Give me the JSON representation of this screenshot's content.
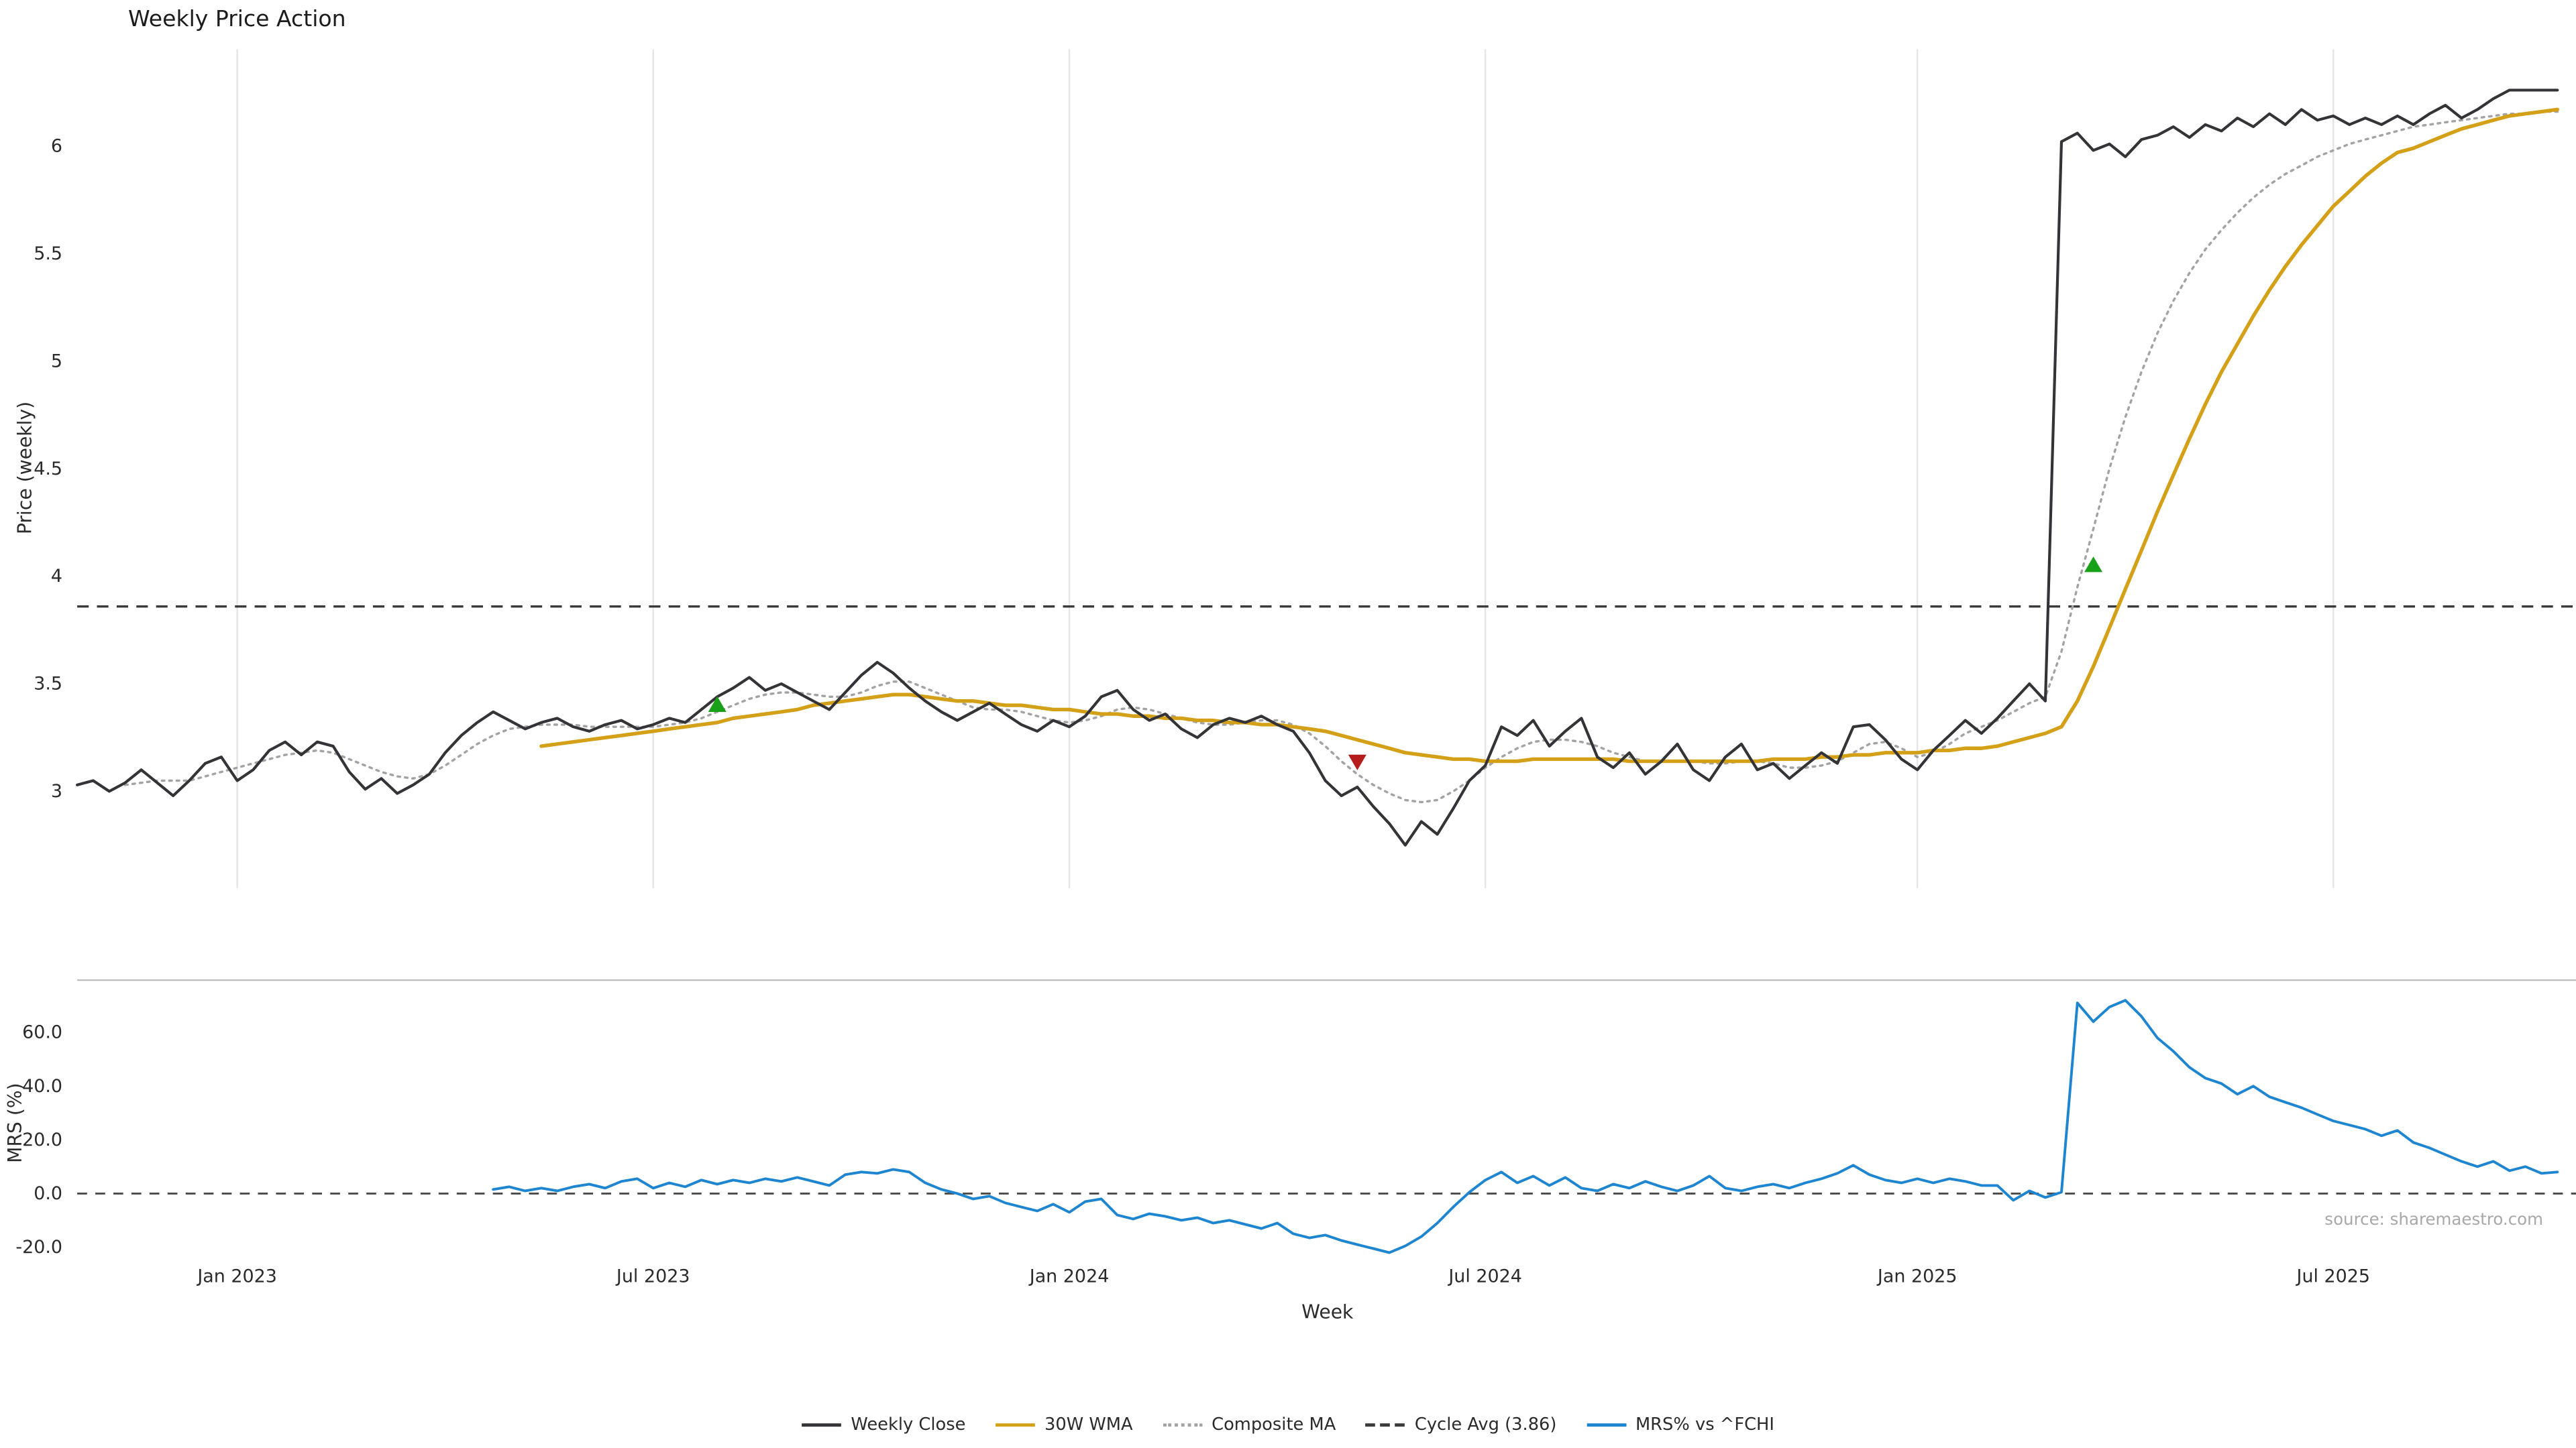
{
  "title": "Weekly Price Action",
  "source_note": "source: sharemaestro.com",
  "axes": {
    "price_ylabel": "Price (weekly)",
    "mrs_ylabel": "MRS (%)",
    "xlabel": "Week"
  },
  "legend": {
    "items": [
      {
        "label": "Weekly Close",
        "style": "solid",
        "color": "#343438"
      },
      {
        "label": "30W WMA",
        "style": "solid",
        "color": "#d4a017"
      },
      {
        "label": "Composite MA",
        "style": "dotted",
        "color": "#a3a3a3"
      },
      {
        "label": "Cycle Avg (3.86)",
        "style": "dashed",
        "color": "#3a3a3a"
      },
      {
        "label": "MRS% vs ^FCHI",
        "style": "solid",
        "color": "#1e85d0"
      }
    ]
  },
  "chart_data": {
    "type": "line",
    "title": "Weekly Price Action",
    "xlabel": "Week",
    "x_unit": "week_index",
    "n_weeks": 156,
    "grid_color": "#e5e5e5",
    "xticks": {
      "indices": [
        10,
        36,
        62,
        88,
        115,
        141
      ],
      "labels": [
        "Jan 2023",
        "Jul 2023",
        "Jan 2024",
        "Jul 2024",
        "Jan 2025",
        "Jul 2025"
      ]
    },
    "panels": [
      {
        "name": "price",
        "ylabel": "Price (weekly)",
        "ylim": [
          2.55,
          6.45
        ],
        "yticks": [
          3,
          3.5,
          4,
          4.5,
          5,
          5.5,
          6
        ],
        "ytick_labels": [
          "3",
          "3.5",
          "4",
          "4.5",
          "5",
          "5.5",
          "6"
        ],
        "cycle_avg": 3.86,
        "series": [
          {
            "name": "Weekly Close",
            "color": "#343438",
            "style": "solid",
            "width": 1.7,
            "start_index": 0,
            "values": [
              3.03,
              3.05,
              3.0,
              3.04,
              3.1,
              3.04,
              2.98,
              3.05,
              3.13,
              3.16,
              3.05,
              3.1,
              3.19,
              3.23,
              3.17,
              3.23,
              3.21,
              3.09,
              3.01,
              3.06,
              2.99,
              3.03,
              3.08,
              3.18,
              3.26,
              3.32,
              3.37,
              3.33,
              3.29,
              3.32,
              3.34,
              3.3,
              3.28,
              3.31,
              3.33,
              3.29,
              3.31,
              3.34,
              3.32,
              3.38,
              3.44,
              3.48,
              3.53,
              3.47,
              3.5,
              3.46,
              3.42,
              3.38,
              3.46,
              3.54,
              3.6,
              3.55,
              3.48,
              3.42,
              3.37,
              3.33,
              3.37,
              3.41,
              3.36,
              3.31,
              3.28,
              3.33,
              3.3,
              3.35,
              3.44,
              3.47,
              3.38,
              3.33,
              3.36,
              3.29,
              3.25,
              3.31,
              3.34,
              3.32,
              3.35,
              3.31,
              3.28,
              3.18,
              3.05,
              2.98,
              3.02,
              2.93,
              2.85,
              2.75,
              2.86,
              2.8,
              2.92,
              3.05,
              3.12,
              3.3,
              3.26,
              3.33,
              3.21,
              3.28,
              3.34,
              3.16,
              3.11,
              3.18,
              3.08,
              3.14,
              3.22,
              3.1,
              3.05,
              3.16,
              3.22,
              3.1,
              3.13,
              3.06,
              3.12,
              3.18,
              3.13,
              3.3,
              3.31,
              3.24,
              3.15,
              3.1,
              3.19,
              3.26,
              3.33,
              3.27,
              3.34,
              3.42,
              3.5,
              3.42,
              6.02,
              6.06,
              5.98,
              6.01,
              5.95,
              6.03,
              6.05,
              6.09,
              6.04,
              6.1,
              6.07,
              6.13,
              6.09,
              6.15,
              6.1,
              6.17,
              6.12,
              6.14,
              6.1,
              6.13,
              6.1,
              6.14,
              6.1,
              6.15,
              6.19,
              6.13,
              6.17,
              6.22,
              6.26,
              6.26,
              6.26,
              6.26
            ]
          },
          {
            "name": "30W WMA",
            "color": "#d4a017",
            "style": "solid",
            "width": 2.2,
            "start_index": 29,
            "values": [
              3.21,
              3.22,
              3.23,
              3.24,
              3.25,
              3.26,
              3.27,
              3.28,
              3.29,
              3.3,
              3.31,
              3.32,
              3.34,
              3.35,
              3.36,
              3.37,
              3.38,
              3.4,
              3.41,
              3.42,
              3.43,
              3.44,
              3.45,
              3.45,
              3.44,
              3.43,
              3.42,
              3.42,
              3.41,
              3.4,
              3.4,
              3.39,
              3.38,
              3.38,
              3.37,
              3.36,
              3.36,
              3.35,
              3.35,
              3.34,
              3.34,
              3.33,
              3.33,
              3.32,
              3.32,
              3.31,
              3.31,
              3.3,
              3.29,
              3.28,
              3.26,
              3.24,
              3.22,
              3.2,
              3.18,
              3.17,
              3.16,
              3.15,
              3.15,
              3.14,
              3.14,
              3.14,
              3.15,
              3.15,
              3.15,
              3.15,
              3.15,
              3.15,
              3.14,
              3.14,
              3.14,
              3.14,
              3.14,
              3.14,
              3.14,
              3.14,
              3.14,
              3.15,
              3.15,
              3.15,
              3.16,
              3.16,
              3.17,
              3.17,
              3.18,
              3.18,
              3.18,
              3.19,
              3.19,
              3.2,
              3.2,
              3.21,
              3.23,
              3.25,
              3.27,
              3.3,
              3.42,
              3.58,
              3.76,
              3.94,
              4.12,
              4.3,
              4.47,
              4.64,
              4.8,
              4.95,
              5.08,
              5.21,
              5.33,
              5.44,
              5.54,
              5.63,
              5.72,
              5.79,
              5.86,
              5.92,
              5.97,
              5.99,
              6.02,
              6.05,
              6.08,
              6.1,
              6.12,
              6.14,
              6.15,
              6.16,
              6.17
            ]
          },
          {
            "name": "Composite MA",
            "color": "#a3a3a3",
            "style": "dotted",
            "width": 1.4,
            "start_index": 3,
            "values": [
              3.03,
              3.04,
              3.05,
              3.05,
              3.05,
              3.07,
              3.09,
              3.11,
              3.13,
              3.15,
              3.17,
              3.18,
              3.19,
              3.18,
              3.15,
              3.12,
              3.09,
              3.07,
              3.06,
              3.08,
              3.12,
              3.17,
              3.22,
              3.26,
              3.29,
              3.3,
              3.31,
              3.31,
              3.31,
              3.3,
              3.3,
              3.3,
              3.3,
              3.3,
              3.31,
              3.32,
              3.34,
              3.37,
              3.4,
              3.43,
              3.45,
              3.46,
              3.46,
              3.45,
              3.44,
              3.44,
              3.46,
              3.49,
              3.51,
              3.51,
              3.48,
              3.45,
              3.42,
              3.39,
              3.38,
              3.38,
              3.37,
              3.35,
              3.33,
              3.32,
              3.33,
              3.35,
              3.38,
              3.39,
              3.38,
              3.36,
              3.34,
              3.32,
              3.31,
              3.31,
              3.32,
              3.33,
              3.33,
              3.31,
              3.27,
              3.21,
              3.14,
              3.08,
              3.03,
              2.99,
              2.96,
              2.95,
              2.96,
              3.0,
              3.05,
              3.11,
              3.16,
              3.2,
              3.23,
              3.24,
              3.24,
              3.23,
              3.21,
              3.18,
              3.16,
              3.14,
              3.14,
              3.14,
              3.14,
              3.13,
              3.13,
              3.14,
              3.14,
              3.13,
              3.11,
              3.11,
              3.12,
              3.14,
              3.18,
              3.22,
              3.23,
              3.2,
              3.16,
              3.18,
              3.22,
              3.27,
              3.3,
              3.33,
              3.37,
              3.41,
              3.44,
              3.65,
              3.95,
              4.22,
              4.5,
              4.74,
              4.95,
              5.13,
              5.28,
              5.41,
              5.52,
              5.61,
              5.69,
              5.76,
              5.82,
              5.87,
              5.91,
              5.95,
              5.98,
              6.01,
              6.03,
              6.05,
              6.07,
              6.09,
              6.1,
              6.11,
              6.12,
              6.13,
              6.14,
              6.15,
              6.15,
              6.16,
              6.16
            ]
          }
        ],
        "markers": [
          {
            "shape": "triangle-up",
            "color": "#18a118",
            "week_index": 40,
            "value": 3.4
          },
          {
            "shape": "triangle-down",
            "color": "#b51d1d",
            "week_index": 80,
            "value": 3.14
          },
          {
            "shape": "triangle-up",
            "color": "#18a118",
            "week_index": 126,
            "value": 4.05
          }
        ]
      },
      {
        "name": "mrs",
        "ylabel": "MRS (%)",
        "ylim": [
          -26.3,
          79.5
        ],
        "yticks": [
          -20,
          0,
          20,
          40,
          60
        ],
        "ytick_labels": [
          "-20.0",
          "0.0",
          "20.0",
          "40.0",
          "60.0"
        ],
        "zero_line": 0,
        "series": [
          {
            "name": "MRS% vs ^FCHI",
            "color": "#1e85d0",
            "style": "solid",
            "width": 1.6,
            "start_index": 26,
            "values": [
              1.5,
              2.5,
              1.0,
              2.0,
              1.0,
              2.5,
              3.5,
              2.0,
              4.5,
              5.5,
              2.0,
              4.0,
              2.5,
              5.0,
              3.5,
              5.0,
              4.0,
              5.5,
              4.5,
              6.0,
              4.5,
              3.0,
              7.0,
              8.0,
              7.5,
              9.0,
              8.0,
              4.0,
              1.5,
              0.0,
              -2.0,
              -1.0,
              -3.5,
              -5.0,
              -6.5,
              -4.0,
              -7.0,
              -3.0,
              -2.0,
              -8.0,
              -9.5,
              -7.5,
              -8.5,
              -10.0,
              -9.0,
              -11.0,
              -10.0,
              -11.5,
              -13.0,
              -11.0,
              -15.0,
              -16.5,
              -15.5,
              -17.5,
              -19.0,
              -20.5,
              -22.0,
              -19.5,
              -16.0,
              -11.0,
              -5.0,
              0.5,
              5.0,
              8.0,
              4.0,
              6.5,
              3.0,
              6.0,
              2.0,
              1.0,
              3.5,
              2.0,
              4.5,
              2.5,
              1.0,
              3.0,
              6.5,
              2.0,
              1.0,
              2.5,
              3.5,
              2.0,
              4.0,
              5.5,
              7.5,
              10.5,
              7.0,
              5.0,
              4.0,
              5.5,
              4.0,
              5.5,
              4.5,
              3.0,
              3.0,
              -2.5,
              1.0,
              -1.5,
              0.5,
              71.0,
              64.0,
              69.5,
              72.0,
              66.0,
              58.0,
              53.0,
              47.0,
              43.0,
              41.0,
              37.0,
              40.0,
              36.0,
              34.0,
              32.0,
              29.5,
              27.0,
              25.5,
              24.0,
              21.5,
              23.5,
              19.0,
              17.0,
              14.5,
              12.0,
              10.0,
              12.0,
              8.5,
              10.0,
              7.5,
              8.0
            ]
          }
        ]
      }
    ]
  }
}
